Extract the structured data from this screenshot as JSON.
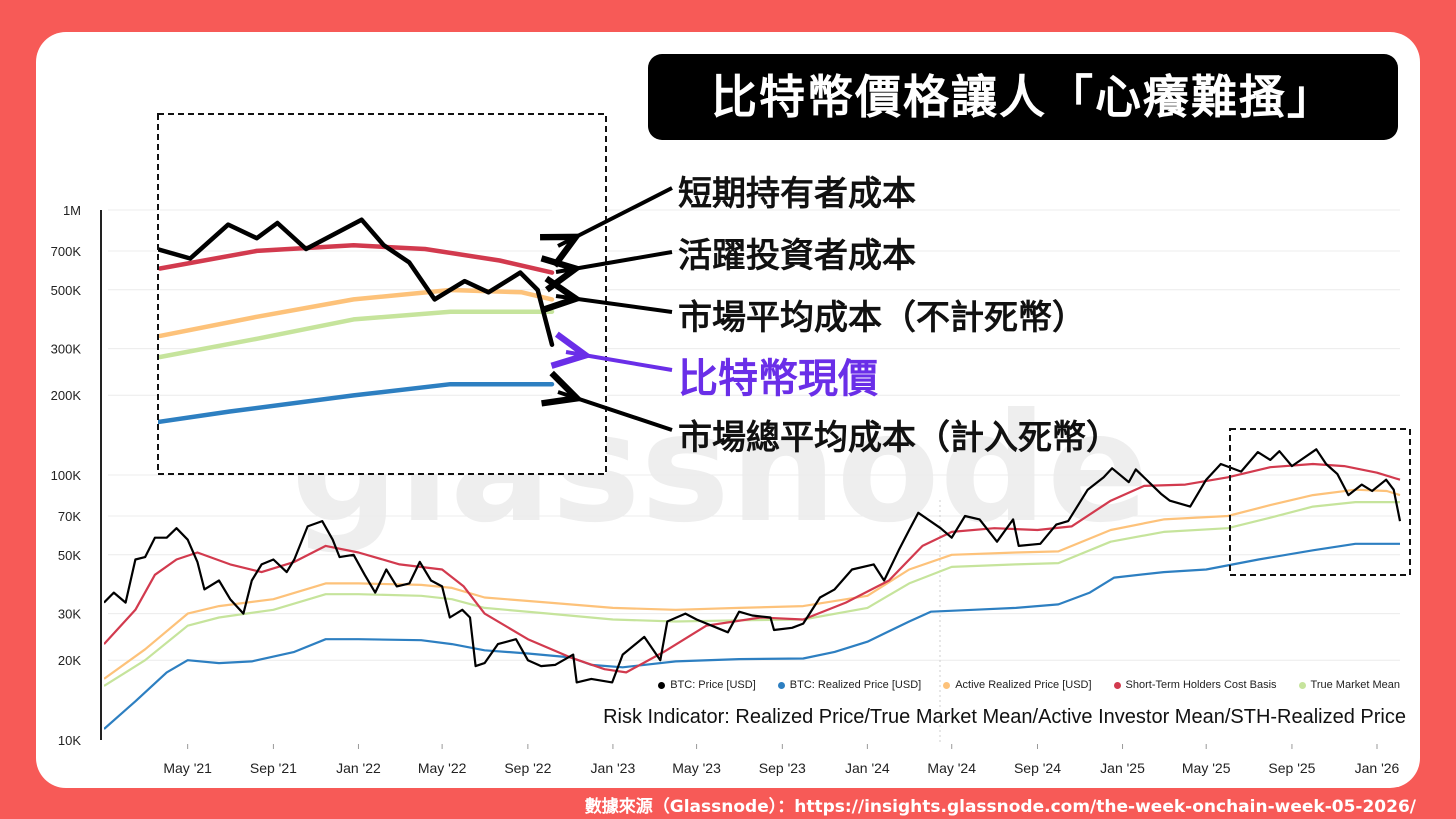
{
  "title": "比特幣價格讓人「心癢難搔」",
  "callouts": {
    "sth": "短期持有者成本",
    "active": "活躍投資者成本",
    "tmm": "市場平均成本（不計死幣）",
    "price": "比特幣現價",
    "realized": "市場總平均成本（計入死幣）"
  },
  "source": "數據來源（Glassnode）：https://insights.glassnode.com/the-week-onchain-week-05-2026/",
  "subtitle": "Risk Indicator: Realized Price/True Market Mean/Active Investor Mean/STH-Realized Price",
  "watermark": "glassnode",
  "colors": {
    "btc": "#000000",
    "realized": "#2d7fc1",
    "active": "#fdc27a",
    "sth": "#d23a4e",
    "tmm": "#c6e49c",
    "highlight": "#6a2ee8",
    "background": "#f75a57"
  },
  "chart_data": {
    "type": "line",
    "y_scale": "log",
    "ylim": [
      10000,
      1000000
    ],
    "y_ticks": [
      {
        "value": 10000,
        "label": "10K"
      },
      {
        "value": 20000,
        "label": "20K"
      },
      {
        "value": 30000,
        "label": "30K"
      },
      {
        "value": 50000,
        "label": "50K"
      },
      {
        "value": 70000,
        "label": "70K"
      },
      {
        "value": 100000,
        "label": "100K"
      },
      {
        "value": 200000,
        "label": "200K"
      },
      {
        "value": 300000,
        "label": "300K"
      },
      {
        "value": 500000,
        "label": "500K"
      },
      {
        "value": 700000,
        "label": "700K"
      },
      {
        "value": 1000000,
        "label": "1M"
      }
    ],
    "x_range": [
      "2021-01-01",
      "2026-02-03"
    ],
    "x_ticks": [
      {
        "date": "2021-05-01",
        "label": "May '21"
      },
      {
        "date": "2021-09-01",
        "label": "Sep '21"
      },
      {
        "date": "2022-01-01",
        "label": "Jan '22"
      },
      {
        "date": "2022-05-01",
        "label": "May '22"
      },
      {
        "date": "2022-09-01",
        "label": "Sep '22"
      },
      {
        "date": "2023-01-01",
        "label": "Jan '23"
      },
      {
        "date": "2023-05-01",
        "label": "May '23"
      },
      {
        "date": "2023-09-01",
        "label": "Sep '23"
      },
      {
        "date": "2024-01-01",
        "label": "Jan '24"
      },
      {
        "date": "2024-05-01",
        "label": "May '24"
      },
      {
        "date": "2024-09-01",
        "label": "Sep '24"
      },
      {
        "date": "2025-01-01",
        "label": "Jan '25"
      },
      {
        "date": "2025-05-01",
        "label": "May '25"
      },
      {
        "date": "2025-09-01",
        "label": "Sep '25"
      },
      {
        "date": "2026-01-01",
        "label": "Jan '26"
      }
    ],
    "series": [
      {
        "name": "BTC: Price [USD]",
        "color_key": "btc",
        "points": [
          [
            "2021-01-01",
            33000
          ],
          [
            "2021-01-15",
            36000
          ],
          [
            "2021-02-01",
            33000
          ],
          [
            "2021-02-15",
            48000
          ],
          [
            "2021-03-01",
            49000
          ],
          [
            "2021-03-15",
            58000
          ],
          [
            "2021-04-01",
            58000
          ],
          [
            "2021-04-15",
            63000
          ],
          [
            "2021-05-01",
            57000
          ],
          [
            "2021-05-15",
            47000
          ],
          [
            "2021-05-25",
            37000
          ],
          [
            "2021-06-15",
            40000
          ],
          [
            "2021-07-01",
            34000
          ],
          [
            "2021-07-20",
            30000
          ],
          [
            "2021-08-01",
            40000
          ],
          [
            "2021-08-15",
            46000
          ],
          [
            "2021-09-01",
            48000
          ],
          [
            "2021-09-20",
            43000
          ],
          [
            "2021-10-01",
            48000
          ],
          [
            "2021-10-20",
            64000
          ],
          [
            "2021-11-10",
            67000
          ],
          [
            "2021-11-25",
            57000
          ],
          [
            "2021-12-05",
            49000
          ],
          [
            "2021-12-25",
            50000
          ],
          [
            "2022-01-10",
            42000
          ],
          [
            "2022-01-25",
            36000
          ],
          [
            "2022-02-10",
            44000
          ],
          [
            "2022-02-25",
            38000
          ],
          [
            "2022-03-15",
            39000
          ],
          [
            "2022-03-30",
            47000
          ],
          [
            "2022-04-15",
            40000
          ],
          [
            "2022-05-01",
            38000
          ],
          [
            "2022-05-12",
            29000
          ],
          [
            "2022-05-30",
            31000
          ],
          [
            "2022-06-10",
            29000
          ],
          [
            "2022-06-18",
            19000
          ],
          [
            "2022-07-01",
            19500
          ],
          [
            "2022-07-20",
            23000
          ],
          [
            "2022-08-15",
            24000
          ],
          [
            "2022-09-01",
            20000
          ],
          [
            "2022-09-20",
            19000
          ],
          [
            "2022-10-10",
            19200
          ],
          [
            "2022-11-05",
            21000
          ],
          [
            "2022-11-10",
            16500
          ],
          [
            "2022-12-01",
            17000
          ],
          [
            "2022-12-31",
            16500
          ],
          [
            "2023-01-15",
            21000
          ],
          [
            "2023-02-15",
            24500
          ],
          [
            "2023-03-10",
            20000
          ],
          [
            "2023-03-20",
            28000
          ],
          [
            "2023-04-15",
            30000
          ],
          [
            "2023-05-01",
            28500
          ],
          [
            "2023-06-15",
            25500
          ],
          [
            "2023-07-01",
            30500
          ],
          [
            "2023-07-20",
            29500
          ],
          [
            "2023-08-15",
            29000
          ],
          [
            "2023-08-20",
            26000
          ],
          [
            "2023-09-15",
            26500
          ],
          [
            "2023-10-01",
            27500
          ],
          [
            "2023-10-25",
            34500
          ],
          [
            "2023-11-15",
            37000
          ],
          [
            "2023-12-10",
            44000
          ],
          [
            "2024-01-10",
            46000
          ],
          [
            "2024-01-25",
            40000
          ],
          [
            "2024-02-15",
            52000
          ],
          [
            "2024-03-01",
            62000
          ],
          [
            "2024-03-14",
            72000
          ],
          [
            "2024-04-15",
            63000
          ],
          [
            "2024-05-01",
            58000
          ],
          [
            "2024-05-20",
            70000
          ],
          [
            "2024-06-10",
            68000
          ],
          [
            "2024-07-05",
            56000
          ],
          [
            "2024-07-28",
            68000
          ],
          [
            "2024-08-05",
            54000
          ],
          [
            "2024-09-05",
            55000
          ],
          [
            "2024-09-28",
            65000
          ],
          [
            "2024-10-15",
            67000
          ],
          [
            "2024-11-12",
            88000
          ],
          [
            "2024-12-05",
            98000
          ],
          [
            "2024-12-17",
            106000
          ],
          [
            "2025-01-10",
            94000
          ],
          [
            "2025-01-20",
            105000
          ],
          [
            "2025-02-25",
            85000
          ],
          [
            "2025-03-10",
            80000
          ],
          [
            "2025-04-08",
            76000
          ],
          [
            "2025-05-01",
            96000
          ],
          [
            "2025-05-22",
            110000
          ],
          [
            "2025-06-20",
            103000
          ],
          [
            "2025-07-14",
            122000
          ],
          [
            "2025-08-01",
            114000
          ],
          [
            "2025-08-14",
            123000
          ],
          [
            "2025-09-01",
            108000
          ],
          [
            "2025-10-06",
            125000
          ],
          [
            "2025-10-20",
            110000
          ],
          [
            "2025-11-05",
            101000
          ],
          [
            "2025-11-21",
            84000
          ],
          [
            "2025-12-10",
            92000
          ],
          [
            "2025-12-25",
            87000
          ],
          [
            "2026-01-14",
            96000
          ],
          [
            "2026-01-25",
            88000
          ],
          [
            "2026-02-03",
            67000
          ]
        ]
      },
      {
        "name": "BTC: Realized Price [USD]",
        "color_key": "realized",
        "points": [
          [
            "2021-01-01",
            11000
          ],
          [
            "2021-02-15",
            14000
          ],
          [
            "2021-04-01",
            18000
          ],
          [
            "2021-05-01",
            20000
          ],
          [
            "2021-06-15",
            19500
          ],
          [
            "2021-08-01",
            19800
          ],
          [
            "2021-10-01",
            21500
          ],
          [
            "2021-11-15",
            24000
          ],
          [
            "2022-01-01",
            24000
          ],
          [
            "2022-04-01",
            23800
          ],
          [
            "2022-05-15",
            23000
          ],
          [
            "2022-07-01",
            21800
          ],
          [
            "2022-09-01",
            21200
          ],
          [
            "2022-11-01",
            20500
          ],
          [
            "2022-12-01",
            19200
          ],
          [
            "2023-01-15",
            18800
          ],
          [
            "2023-04-01",
            19800
          ],
          [
            "2023-07-01",
            20200
          ],
          [
            "2023-10-01",
            20300
          ],
          [
            "2023-11-15",
            21500
          ],
          [
            "2024-01-01",
            23500
          ],
          [
            "2024-03-01",
            28000
          ],
          [
            "2024-04-01",
            30500
          ],
          [
            "2024-06-01",
            31000
          ],
          [
            "2024-08-01",
            31500
          ],
          [
            "2024-10-01",
            32500
          ],
          [
            "2024-11-15",
            36000
          ],
          [
            "2024-12-20",
            41000
          ],
          [
            "2025-03-01",
            43000
          ],
          [
            "2025-05-01",
            44000
          ],
          [
            "2025-07-15",
            48000
          ],
          [
            "2025-10-01",
            52000
          ],
          [
            "2025-12-01",
            55000
          ],
          [
            "2026-02-03",
            55000
          ]
        ]
      },
      {
        "name": "Active Realized Price [USD]",
        "color_key": "active",
        "points": [
          [
            "2021-01-01",
            17000
          ],
          [
            "2021-03-01",
            22000
          ],
          [
            "2021-05-01",
            30000
          ],
          [
            "2021-06-15",
            32000
          ],
          [
            "2021-09-01",
            34000
          ],
          [
            "2021-11-15",
            39000
          ],
          [
            "2022-01-01",
            39000
          ],
          [
            "2022-04-01",
            38500
          ],
          [
            "2022-05-15",
            37500
          ],
          [
            "2022-07-01",
            34500
          ],
          [
            "2022-10-01",
            33000
          ],
          [
            "2023-01-01",
            31500
          ],
          [
            "2023-04-01",
            31000
          ],
          [
            "2023-07-01",
            31500
          ],
          [
            "2023-10-01",
            32000
          ],
          [
            "2024-01-01",
            35000
          ],
          [
            "2024-03-01",
            44000
          ],
          [
            "2024-05-01",
            50000
          ],
          [
            "2024-08-01",
            51000
          ],
          [
            "2024-10-01",
            51500
          ],
          [
            "2024-12-15",
            62000
          ],
          [
            "2025-03-01",
            68000
          ],
          [
            "2025-06-01",
            70000
          ],
          [
            "2025-08-01",
            77000
          ],
          [
            "2025-10-01",
            84000
          ],
          [
            "2025-12-01",
            88000
          ],
          [
            "2026-01-15",
            87000
          ],
          [
            "2026-02-03",
            84000
          ]
        ]
      },
      {
        "name": "Short-Term Holders Cost Basis",
        "color_key": "sth",
        "points": [
          [
            "2021-01-01",
            23000
          ],
          [
            "2021-02-15",
            31000
          ],
          [
            "2021-03-15",
            42000
          ],
          [
            "2021-04-15",
            48000
          ],
          [
            "2021-05-15",
            51000
          ],
          [
            "2021-07-01",
            46000
          ],
          [
            "2021-08-15",
            43000
          ],
          [
            "2021-10-01",
            47000
          ],
          [
            "2021-11-15",
            54000
          ],
          [
            "2022-01-01",
            51000
          ],
          [
            "2022-03-01",
            46000
          ],
          [
            "2022-05-01",
            44000
          ],
          [
            "2022-06-01",
            38000
          ],
          [
            "2022-07-01",
            30000
          ],
          [
            "2022-09-01",
            24000
          ],
          [
            "2022-11-01",
            20500
          ],
          [
            "2022-12-20",
            18500
          ],
          [
            "2023-01-20",
            18000
          ],
          [
            "2023-03-15",
            21500
          ],
          [
            "2023-05-15",
            27000
          ],
          [
            "2023-08-01",
            29000
          ],
          [
            "2023-10-01",
            28500
          ],
          [
            "2023-12-01",
            33000
          ],
          [
            "2024-02-01",
            40000
          ],
          [
            "2024-03-20",
            54000
          ],
          [
            "2024-05-01",
            61000
          ],
          [
            "2024-07-01",
            63000
          ],
          [
            "2024-09-01",
            62000
          ],
          [
            "2024-10-20",
            64000
          ],
          [
            "2024-12-15",
            80000
          ],
          [
            "2025-02-01",
            91000
          ],
          [
            "2025-04-01",
            92000
          ],
          [
            "2025-06-01",
            98000
          ],
          [
            "2025-08-01",
            107000
          ],
          [
            "2025-10-01",
            110000
          ],
          [
            "2025-11-15",
            108000
          ],
          [
            "2026-01-01",
            102000
          ],
          [
            "2026-02-03",
            96000
          ]
        ]
      },
      {
        "name": "True Market Mean",
        "color_key": "tmm",
        "points": [
          [
            "2021-01-01",
            16000
          ],
          [
            "2021-03-01",
            20000
          ],
          [
            "2021-05-01",
            27000
          ],
          [
            "2021-06-15",
            29000
          ],
          [
            "2021-09-01",
            31000
          ],
          [
            "2021-11-15",
            35500
          ],
          [
            "2022-01-01",
            35500
          ],
          [
            "2022-04-01",
            35000
          ],
          [
            "2022-05-15",
            34000
          ],
          [
            "2022-07-01",
            31500
          ],
          [
            "2022-10-01",
            30000
          ],
          [
            "2023-01-01",
            28500
          ],
          [
            "2023-04-01",
            28000
          ],
          [
            "2023-07-01",
            28300
          ],
          [
            "2023-10-01",
            28500
          ],
          [
            "2024-01-01",
            31500
          ],
          [
            "2024-03-01",
            39000
          ],
          [
            "2024-05-01",
            45000
          ],
          [
            "2024-08-01",
            46000
          ],
          [
            "2024-10-01",
            46500
          ],
          [
            "2024-12-15",
            56000
          ],
          [
            "2025-03-01",
            61000
          ],
          [
            "2025-06-01",
            63000
          ],
          [
            "2025-08-01",
            69000
          ],
          [
            "2025-10-01",
            76000
          ],
          [
            "2025-12-01",
            79000
          ],
          [
            "2026-01-15",
            79000
          ],
          [
            "2026-02-03",
            79000
          ]
        ]
      }
    ],
    "legend_position": "bottom-right",
    "grid": true
  }
}
